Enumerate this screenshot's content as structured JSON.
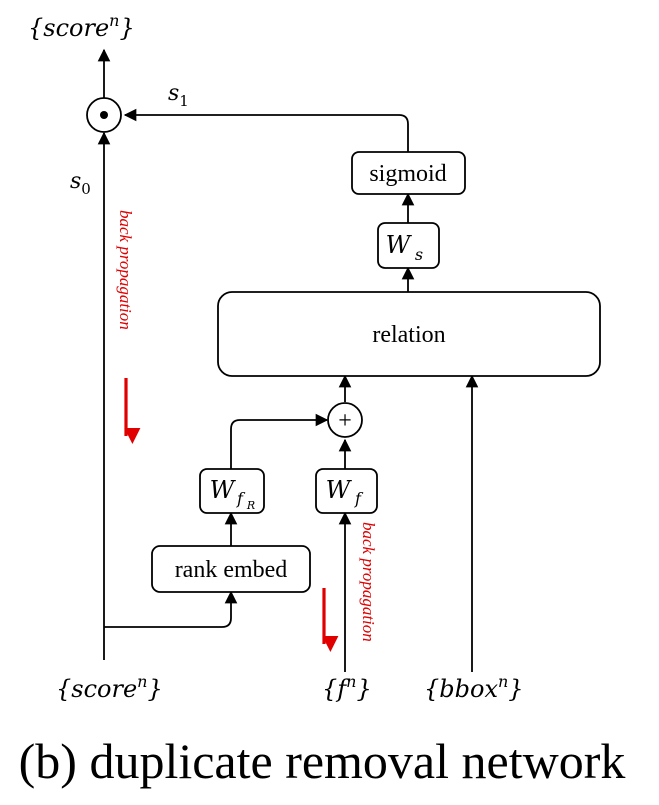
{
  "labels": {
    "score_top": "{score",
    "score_top_sup": "n",
    "score_top_close": "}",
    "score_bottom": "{score",
    "score_bottom_sup": "n",
    "score_bottom_close": "}",
    "f_bottom": "{f",
    "f_bottom_sup": "n",
    "f_bottom_close": "}",
    "bbox_bottom": "{bbox",
    "bbox_bottom_sup": "n",
    "bbox_bottom_close": "}",
    "s0": "s",
    "s0_sub": "0",
    "s1": "s",
    "s1_sub": "1"
  },
  "boxes": {
    "sigmoid": "sigmoid",
    "ws": "W",
    "ws_sub": "s",
    "relation": "relation",
    "wfr": "W",
    "wfr_sub": "f",
    "wfr_subsub": "R",
    "wf": "W",
    "wf_sub": "f",
    "rank_embed": "rank embed"
  },
  "operators": {
    "plus": "+"
  },
  "annotations": {
    "backprop_left": "back propagation",
    "backprop_right": "back propagation"
  },
  "caption": "(b) duplicate removal network",
  "colors": {
    "stroke": "#000000",
    "accent": "#e00000"
  }
}
